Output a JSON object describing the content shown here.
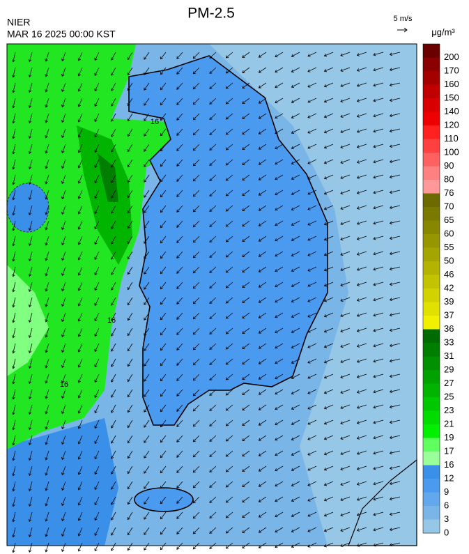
{
  "header": {
    "title": "PM-2.5",
    "agency": "NIER",
    "timestamp": "MAR 16 2025 00:00 KST",
    "wind_reference": "5 m/s"
  },
  "colorbar": {
    "unit": "μg/m³",
    "levels": [
      200,
      170,
      160,
      150,
      140,
      120,
      110,
      100,
      90,
      80,
      76,
      70,
      65,
      60,
      55,
      50,
      46,
      42,
      39,
      37,
      36,
      33,
      31,
      29,
      27,
      25,
      23,
      21,
      19,
      17,
      16,
      12,
      9,
      6,
      3,
      0
    ],
    "colors": [
      "#6b0000",
      "#8b0000",
      "#a50000",
      "#c00000",
      "#d80000",
      "#ee0000",
      "#ff2020",
      "#ff4040",
      "#ff6060",
      "#ff8080",
      "#ff9999",
      "#6b6b00",
      "#7a7a00",
      "#888800",
      "#969600",
      "#a5a500",
      "#b4b400",
      "#c3c300",
      "#d2d200",
      "#e1e100",
      "#f0f000",
      "#006b00",
      "#007e00",
      "#009000",
      "#00a200",
      "#00b400",
      "#00c800",
      "#00dc00",
      "#00f000",
      "#60ff60",
      "#99ff99",
      "#3a8fe8",
      "#4a9af0",
      "#62a8ec",
      "#7ab5e8",
      "#97c7e6"
    ]
  },
  "map": {
    "contour_labels": [
      16,
      16,
      16
    ]
  }
}
